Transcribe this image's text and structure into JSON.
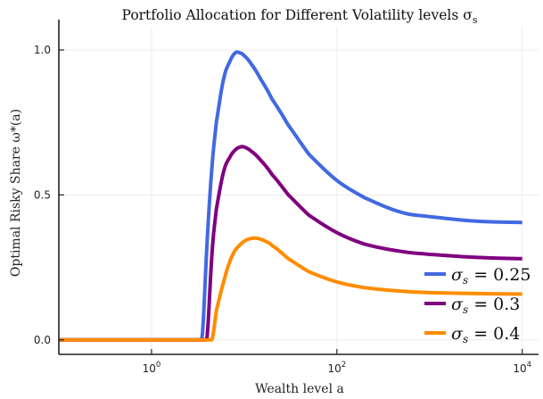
{
  "chart_data": {
    "type": "line",
    "title": "Portfolio Allocation for Different Volatility levels σ",
    "title_sub": "s",
    "xlabel": "Wealth level a",
    "ylabel": "Optimal Risky Share ω*(a)",
    "xscale": "log",
    "xlim": [
      0.1,
      15000
    ],
    "ylim": [
      -0.05,
      1.08
    ],
    "grid": true,
    "legend_position": "bottom-right",
    "x_ticks": [
      {
        "value": 1,
        "base": "10",
        "exp": "0"
      },
      {
        "value": 100,
        "base": "10",
        "exp": "2"
      },
      {
        "value": 10000,
        "base": "10",
        "exp": "4"
      }
    ],
    "y_ticks": [
      {
        "value": 0,
        "label": "0.0"
      },
      {
        "value": 0.5,
        "label": "0.5"
      },
      {
        "value": 1,
        "label": "1.0"
      }
    ],
    "x_domain": [
      0.1,
      10000
    ],
    "series": [
      {
        "name": "σ_s = 0.25",
        "label_sym": "σ",
        "label_sub": "s",
        "label_val": "= 0.25",
        "color": "#4169E1",
        "points": [
          [
            0.1,
            0
          ],
          [
            3.45,
            0
          ],
          [
            3.5,
            0.0
          ],
          [
            4,
            0.35
          ],
          [
            4.5,
            0.6
          ],
          [
            5,
            0.75
          ],
          [
            6,
            0.9
          ],
          [
            7,
            0.96
          ],
          [
            8,
            0.99
          ],
          [
            9,
            0.99
          ],
          [
            10,
            0.98
          ],
          [
            12,
            0.95
          ],
          [
            15,
            0.9
          ],
          [
            20,
            0.83
          ],
          [
            30,
            0.74
          ],
          [
            50,
            0.64
          ],
          [
            100,
            0.55
          ],
          [
            200,
            0.49
          ],
          [
            500,
            0.44
          ],
          [
            1000,
            0.425
          ],
          [
            3000,
            0.41
          ],
          [
            10000,
            0.405
          ]
        ]
      },
      {
        "name": "σ_s = 0.3",
        "label_sym": "σ",
        "label_sub": "s",
        "label_val": "= 0.3",
        "color": "#800080",
        "points": [
          [
            0.1,
            0
          ],
          [
            3.9,
            0
          ],
          [
            3.95,
            0.0
          ],
          [
            4.5,
            0.3
          ],
          [
            5,
            0.45
          ],
          [
            6,
            0.58
          ],
          [
            7,
            0.63
          ],
          [
            8,
            0.655
          ],
          [
            9,
            0.665
          ],
          [
            10,
            0.665
          ],
          [
            12,
            0.65
          ],
          [
            15,
            0.62
          ],
          [
            20,
            0.57
          ],
          [
            30,
            0.5
          ],
          [
            50,
            0.43
          ],
          [
            100,
            0.37
          ],
          [
            200,
            0.33
          ],
          [
            500,
            0.305
          ],
          [
            1000,
            0.295
          ],
          [
            3000,
            0.285
          ],
          [
            10000,
            0.28
          ]
        ]
      },
      {
        "name": "σ_s = 0.4",
        "label_sym": "σ",
        "label_sub": "s",
        "label_val": "= 0.4",
        "color": "#FF8C00",
        "points": [
          [
            0.1,
            0
          ],
          [
            4.45,
            0
          ],
          [
            4.5,
            0.0
          ],
          [
            5,
            0.1
          ],
          [
            6,
            0.2
          ],
          [
            7,
            0.27
          ],
          [
            8,
            0.31
          ],
          [
            10,
            0.34
          ],
          [
            12,
            0.35
          ],
          [
            14,
            0.35
          ],
          [
            17,
            0.34
          ],
          [
            20,
            0.325
          ],
          [
            30,
            0.28
          ],
          [
            50,
            0.235
          ],
          [
            100,
            0.2
          ],
          [
            200,
            0.18
          ],
          [
            500,
            0.168
          ],
          [
            1000,
            0.163
          ],
          [
            3000,
            0.16
          ],
          [
            10000,
            0.158
          ]
        ]
      }
    ]
  }
}
